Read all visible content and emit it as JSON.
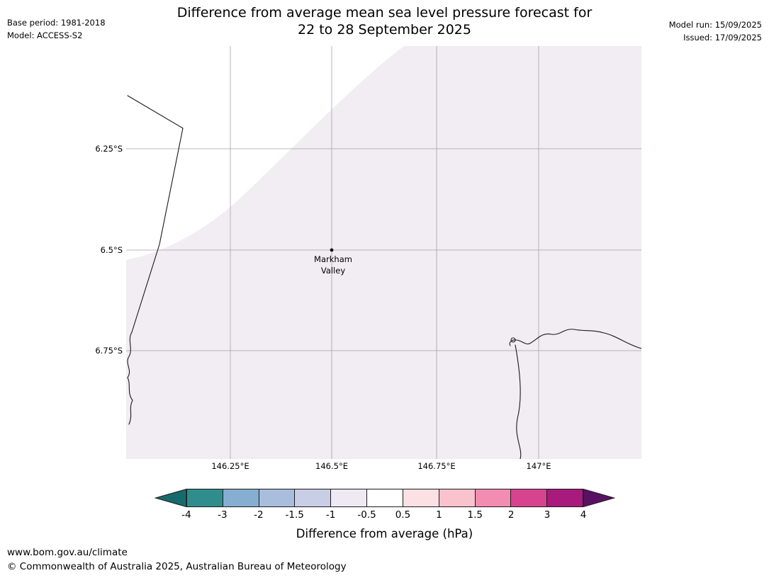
{
  "header": {
    "title_line1": "Difference from average mean sea level pressure forecast for",
    "title_line2": "22 to 28 September 2025",
    "base_period": "Base period: 1981-2018",
    "model": "Model: ACCESS-S2",
    "model_run": "Model run: 15/09/2025",
    "issued": "Issued: 17/09/2025"
  },
  "map": {
    "lat_labels": [
      "6.25°S",
      "6.5°S",
      "6.75°S"
    ],
    "lon_labels": [
      "146.25°E",
      "146.5°E",
      "146.75°E",
      "147°E"
    ],
    "marker": {
      "line1": "Markham",
      "line2": "Valley"
    },
    "colors": {
      "region_fill": "#f2ecf3",
      "band_fill": "#ffffff",
      "coastline": "#1a1a1a",
      "graticule": "#a3a3a3",
      "marker": "#111111"
    }
  },
  "colorbar": {
    "label": "Difference from average (hPa)",
    "tick_labels": [
      "-4",
      "-3",
      "-2",
      "-1.5",
      "-1",
      "-0.5",
      "0.5",
      "1",
      "1.5",
      "2",
      "3",
      "4"
    ],
    "segment_colors": [
      "#2f8e8d",
      "#85aed0",
      "#a9bedd",
      "#c8cee6",
      "#efe9f3",
      "#ffffff",
      "#fce1e4",
      "#f9c2cd",
      "#f28cb1",
      "#d8438f",
      "#a91a7d"
    ],
    "arrow_left_color": "#176a6c",
    "arrow_right_color": "#591263"
  },
  "footer": {
    "url": "www.bom.gov.au/climate",
    "copyright": "© Commonwealth of Australia 2025, Australian Bureau of Meteorology"
  }
}
